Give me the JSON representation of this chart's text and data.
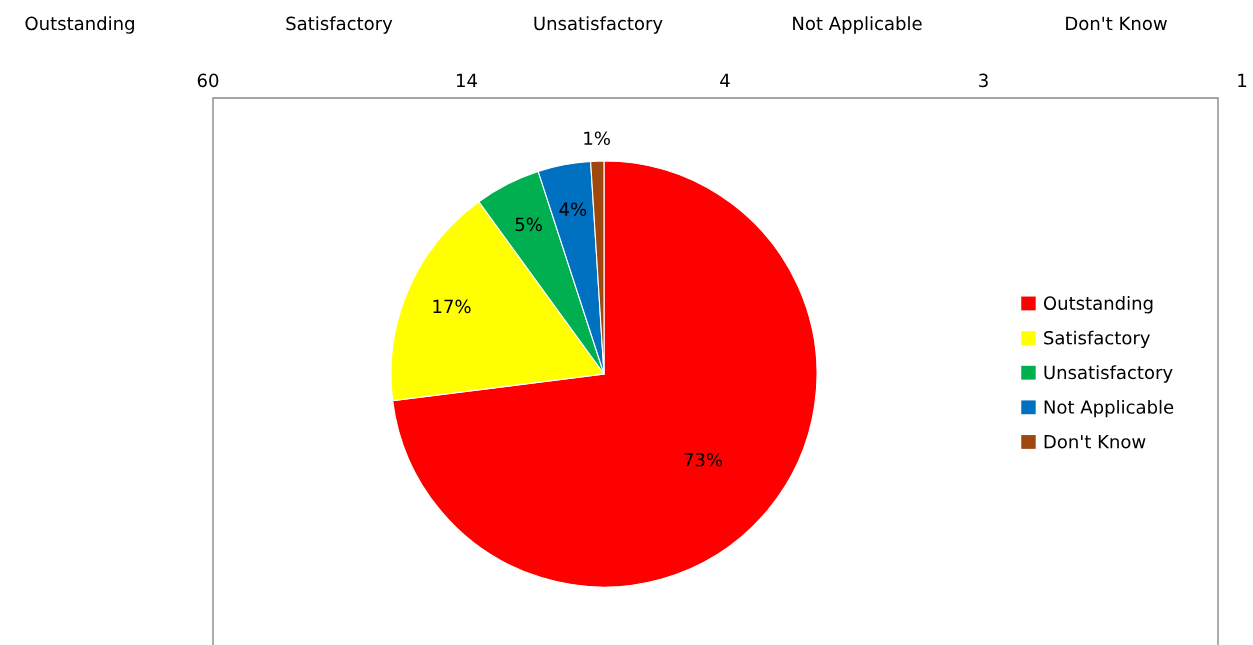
{
  "chart_data": {
    "type": "pie",
    "categories": [
      "Outstanding",
      "Satisfactory",
      "Unsatisfactory",
      "Not Applicable",
      "Don't Know"
    ],
    "values": [
      73,
      17,
      5,
      4,
      1
    ],
    "annotations": [
      "60",
      "14",
      "4",
      "3",
      "1"
    ],
    "colors": [
      "#ff0000",
      "#ffff00",
      "#00b050",
      "#0070c0",
      "#9e480e"
    ],
    "value_labels": [
      "73%",
      "17%",
      "5%",
      "4%",
      "1%"
    ],
    "legend": "right"
  }
}
